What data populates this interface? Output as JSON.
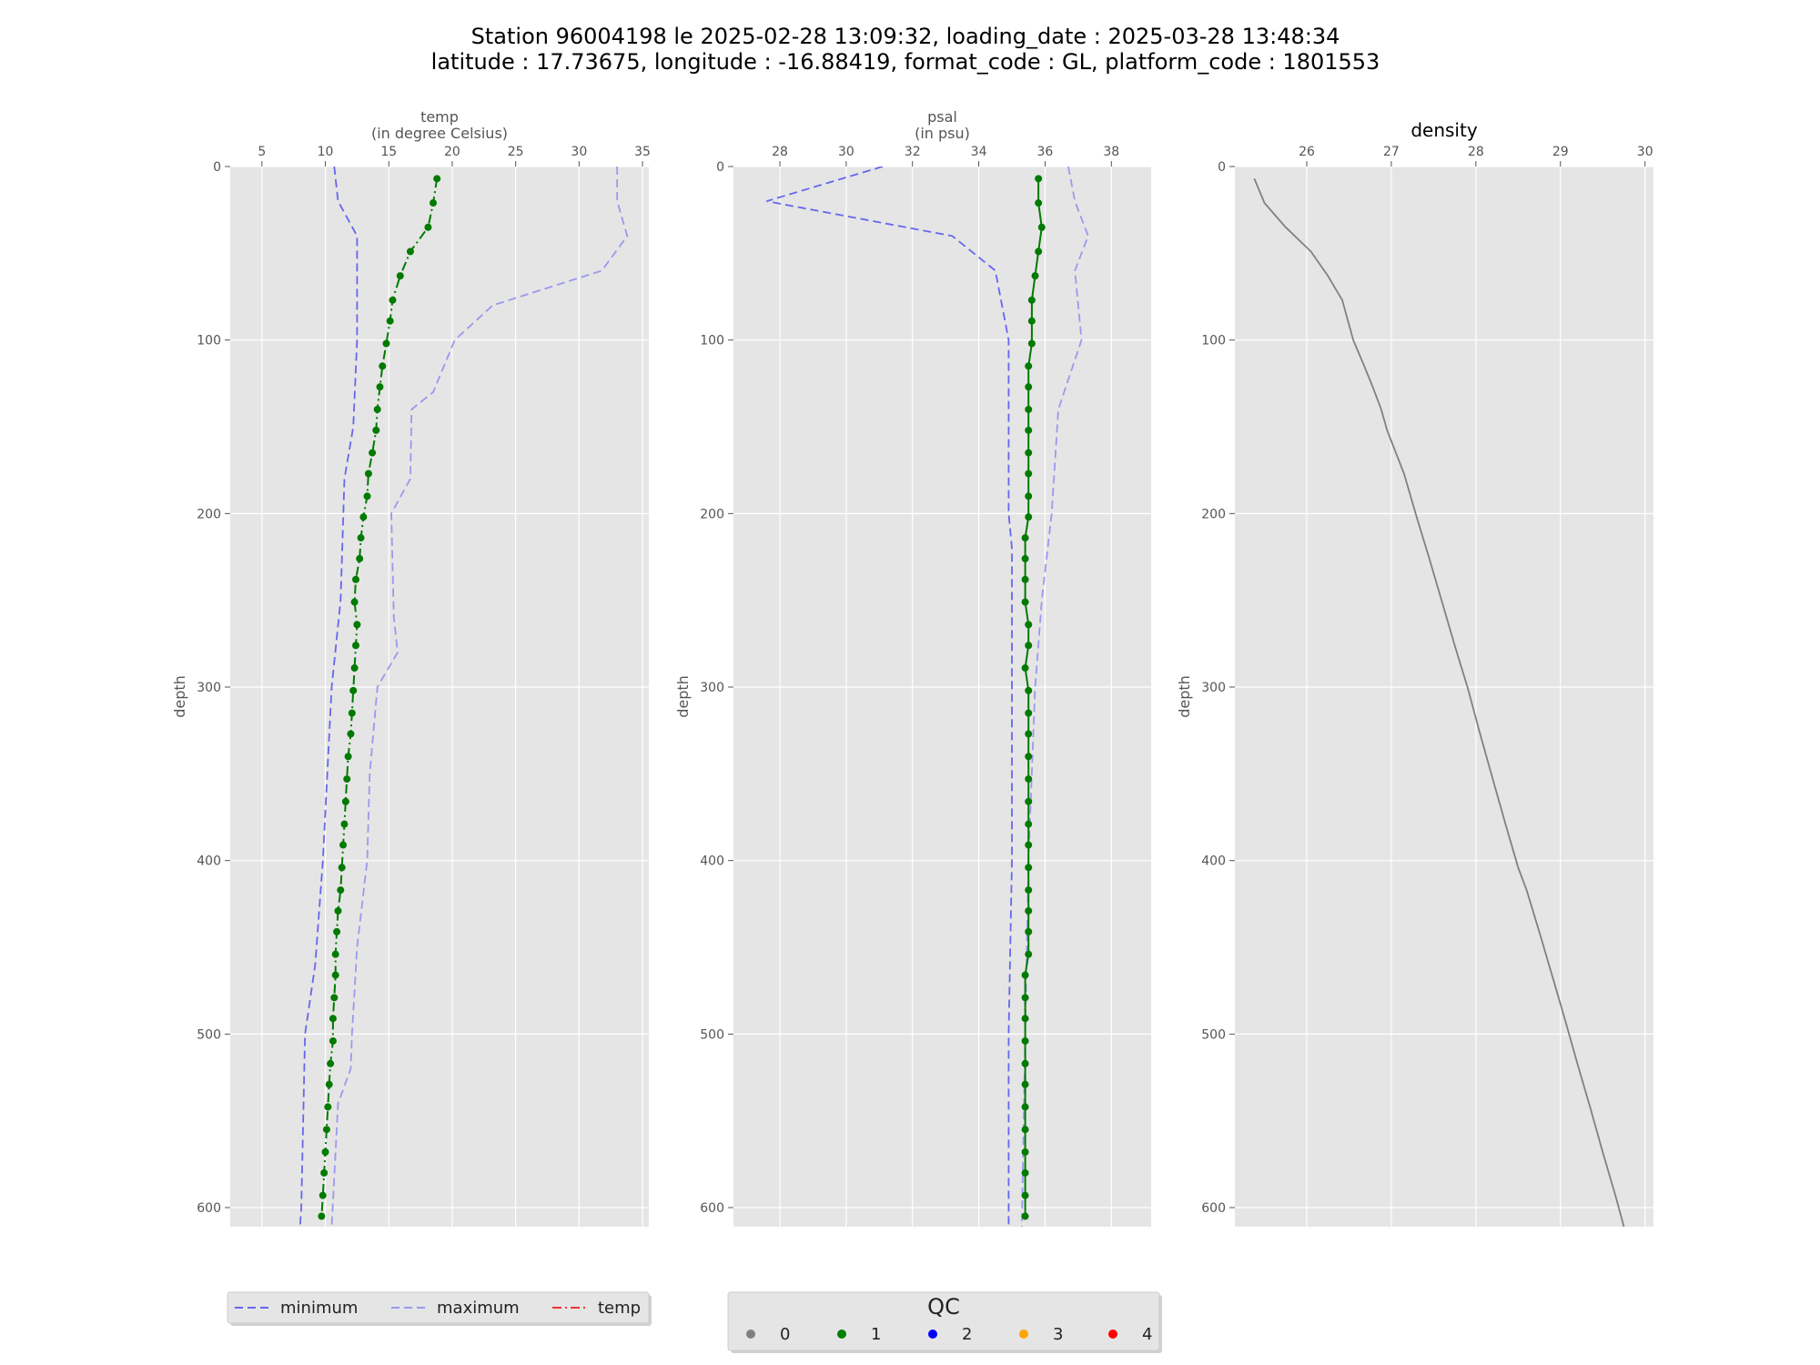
{
  "title_line1": "Station 96004198 le 2025-02-28 13:09:32, loading_date : 2025-03-28 13:48:34",
  "title_line2": "latitude : 17.73675, longitude : -16.88419, format_code : GL, platform_code : 1801553",
  "chart_data": [
    {
      "type": "line",
      "xlabel_line1": "temp",
      "xlabel_line2": "(in degree Celsius)",
      "ylabel": "depth",
      "xlim": [
        2.5,
        35.5
      ],
      "ylim": [
        611,
        0
      ],
      "xticks": [
        5,
        10,
        15,
        20,
        25,
        30,
        35
      ],
      "yticks": [
        0,
        100,
        200,
        300,
        400,
        500,
        600
      ],
      "grid": true,
      "series": [
        {
          "name": "minimum",
          "style": "dashed",
          "color": "#6666ee",
          "points": [
            [
              10.7,
              0
            ],
            [
              11.0,
              20
            ],
            [
              12.5,
              40
            ],
            [
              12.5,
              100
            ],
            [
              12.2,
              150
            ],
            [
              11.5,
              180
            ],
            [
              11.2,
              250
            ],
            [
              10.5,
              300
            ],
            [
              9.8,
              400
            ],
            [
              9.2,
              460
            ],
            [
              8.4,
              500
            ],
            [
              8.1,
              600
            ],
            [
              8.0,
              611
            ]
          ]
        },
        {
          "name": "maximum",
          "style": "dashed",
          "color": "#9999ee",
          "points": [
            [
              33.0,
              0
            ],
            [
              33.0,
              20
            ],
            [
              33.8,
              40
            ],
            [
              31.8,
              60
            ],
            [
              23.2,
              80
            ],
            [
              20.2,
              100
            ],
            [
              18.5,
              130
            ],
            [
              16.8,
              140
            ],
            [
              16.7,
              180
            ],
            [
              15.2,
              200
            ],
            [
              15.4,
              260
            ],
            [
              15.7,
              280
            ],
            [
              14.1,
              300
            ],
            [
              13.5,
              350
            ],
            [
              13.3,
              400
            ],
            [
              12.5,
              450
            ],
            [
              12.1,
              500
            ],
            [
              12.0,
              520
            ],
            [
              11.0,
              540
            ],
            [
              10.5,
              611
            ]
          ]
        },
        {
          "name": "temp",
          "style": "dashdot",
          "color": "#22aa22",
          "points": [
            [
              18.8,
              7
            ],
            [
              18.5,
              21
            ],
            [
              18.1,
              35
            ],
            [
              16.7,
              49
            ],
            [
              15.9,
              63
            ],
            [
              15.3,
              77
            ],
            [
              15.1,
              89
            ],
            [
              14.8,
              102
            ],
            [
              14.5,
              115
            ],
            [
              14.3,
              127
            ],
            [
              14.1,
              140
            ],
            [
              14.0,
              152
            ],
            [
              13.7,
              165
            ],
            [
              13.4,
              177
            ],
            [
              13.3,
              190
            ],
            [
              13.0,
              202
            ],
            [
              12.8,
              214
            ],
            [
              12.7,
              226
            ],
            [
              12.4,
              238
            ],
            [
              12.3,
              251
            ],
            [
              12.5,
              264
            ],
            [
              12.4,
              276
            ],
            [
              12.3,
              289
            ],
            [
              12.2,
              302
            ],
            [
              12.1,
              315
            ],
            [
              12.0,
              327
            ],
            [
              11.8,
              340
            ],
            [
              11.7,
              353
            ],
            [
              11.6,
              366
            ],
            [
              11.5,
              379
            ],
            [
              11.4,
              391
            ],
            [
              11.3,
              404
            ],
            [
              11.2,
              417
            ],
            [
              11.0,
              429
            ],
            [
              10.9,
              441
            ],
            [
              10.8,
              454
            ],
            [
              10.8,
              466
            ],
            [
              10.7,
              479
            ],
            [
              10.6,
              491
            ],
            [
              10.6,
              504
            ],
            [
              10.4,
              517
            ],
            [
              10.3,
              529
            ],
            [
              10.2,
              542
            ],
            [
              10.1,
              555
            ],
            [
              10.0,
              568
            ],
            [
              9.9,
              580
            ],
            [
              9.8,
              593
            ],
            [
              9.7,
              605
            ]
          ]
        }
      ]
    },
    {
      "type": "line",
      "xlabel_line1": "psal",
      "xlabel_line2": "(in psu)",
      "ylabel": "depth",
      "xlim": [
        26.6,
        39.2
      ],
      "ylim": [
        611,
        0
      ],
      "xticks": [
        28,
        30,
        32,
        34,
        36,
        38
      ],
      "yticks": [
        0,
        100,
        200,
        300,
        400,
        500,
        600
      ],
      "grid": true,
      "series": [
        {
          "name": "minimum",
          "style": "dashed",
          "color": "#6666ee",
          "points": [
            [
              31.1,
              0
            ],
            [
              27.6,
              20
            ],
            [
              33.2,
              40
            ],
            [
              34.5,
              60
            ],
            [
              34.9,
              100
            ],
            [
              34.9,
              200
            ],
            [
              35.0,
              220
            ],
            [
              35.0,
              400
            ],
            [
              34.9,
              500
            ],
            [
              34.9,
              611
            ]
          ]
        },
        {
          "name": "maximum",
          "style": "dashed",
          "color": "#9999ee",
          "points": [
            [
              36.7,
              0
            ],
            [
              36.9,
              20
            ],
            [
              37.3,
              40
            ],
            [
              36.9,
              60
            ],
            [
              37.1,
              100
            ],
            [
              36.4,
              140
            ],
            [
              36.2,
              200
            ],
            [
              35.9,
              250
            ],
            [
              35.7,
              300
            ],
            [
              35.5,
              400
            ],
            [
              35.4,
              500
            ],
            [
              35.3,
              611
            ]
          ]
        },
        {
          "name": "psal",
          "style": "solid",
          "color": "#22aa22",
          "points": [
            [
              35.8,
              7
            ],
            [
              35.8,
              21
            ],
            [
              35.9,
              35
            ],
            [
              35.8,
              49
            ],
            [
              35.7,
              63
            ],
            [
              35.6,
              77
            ],
            [
              35.6,
              89
            ],
            [
              35.6,
              102
            ],
            [
              35.5,
              115
            ],
            [
              35.5,
              127
            ],
            [
              35.5,
              140
            ],
            [
              35.5,
              152
            ],
            [
              35.5,
              165
            ],
            [
              35.5,
              177
            ],
            [
              35.5,
              190
            ],
            [
              35.5,
              202
            ],
            [
              35.4,
              214
            ],
            [
              35.4,
              226
            ],
            [
              35.4,
              238
            ],
            [
              35.4,
              251
            ],
            [
              35.5,
              264
            ],
            [
              35.5,
              276
            ],
            [
              35.4,
              289
            ],
            [
              35.5,
              302
            ],
            [
              35.5,
              315
            ],
            [
              35.5,
              327
            ],
            [
              35.5,
              340
            ],
            [
              35.5,
              353
            ],
            [
              35.5,
              366
            ],
            [
              35.5,
              379
            ],
            [
              35.5,
              391
            ],
            [
              35.5,
              404
            ],
            [
              35.5,
              417
            ],
            [
              35.5,
              429
            ],
            [
              35.5,
              441
            ],
            [
              35.5,
              454
            ],
            [
              35.4,
              466
            ],
            [
              35.4,
              479
            ],
            [
              35.4,
              491
            ],
            [
              35.4,
              504
            ],
            [
              35.4,
              517
            ],
            [
              35.4,
              529
            ],
            [
              35.4,
              542
            ],
            [
              35.4,
              555
            ],
            [
              35.4,
              568
            ],
            [
              35.4,
              580
            ],
            [
              35.4,
              593
            ],
            [
              35.4,
              605
            ]
          ]
        }
      ]
    },
    {
      "type": "line",
      "title": "density",
      "ylabel": "depth",
      "xlim": [
        25.15,
        30.1
      ],
      "ylim": [
        611,
        0
      ],
      "xticks": [
        26,
        27,
        28,
        29,
        30
      ],
      "yticks": [
        0,
        100,
        200,
        300,
        400,
        500,
        600
      ],
      "grid": true,
      "series": [
        {
          "name": "density",
          "style": "solid",
          "color": "#808080",
          "points": [
            [
              25.38,
              7
            ],
            [
              25.5,
              21
            ],
            [
              25.75,
              35
            ],
            [
              26.05,
              49
            ],
            [
              26.25,
              63
            ],
            [
              26.42,
              77
            ],
            [
              26.55,
              100
            ],
            [
              26.68,
              115
            ],
            [
              26.78,
              127
            ],
            [
              26.88,
              140
            ],
            [
              26.95,
              152
            ],
            [
              27.15,
              177
            ],
            [
              27.3,
              202
            ],
            [
              27.45,
              226
            ],
            [
              27.6,
              251
            ],
            [
              27.75,
              276
            ],
            [
              27.9,
              300
            ],
            [
              28.05,
              327
            ],
            [
              28.2,
              353
            ],
            [
              28.35,
              379
            ],
            [
              28.5,
              404
            ],
            [
              28.6,
              417
            ],
            [
              28.75,
              441
            ],
            [
              28.9,
              466
            ],
            [
              29.05,
              491
            ],
            [
              29.2,
              517
            ],
            [
              29.35,
              542
            ],
            [
              29.5,
              568
            ],
            [
              29.65,
              593
            ],
            [
              29.75,
              611
            ]
          ]
        }
      ]
    }
  ],
  "legend_series": [
    {
      "label": "minimum",
      "color": "#6666ee",
      "style": "dashed"
    },
    {
      "label": "maximum",
      "color": "#9999ee",
      "style": "dashed"
    },
    {
      "label": "temp",
      "color": "#ee3333",
      "style": "dashdot"
    }
  ],
  "legend_qc": {
    "title": "QC",
    "items": [
      {
        "label": "0",
        "color": "#808080"
      },
      {
        "label": "1",
        "color": "#008000"
      },
      {
        "label": "2",
        "color": "#0000ff"
      },
      {
        "label": "3",
        "color": "#ffa500"
      },
      {
        "label": "4",
        "color": "#ff0000"
      }
    ]
  }
}
